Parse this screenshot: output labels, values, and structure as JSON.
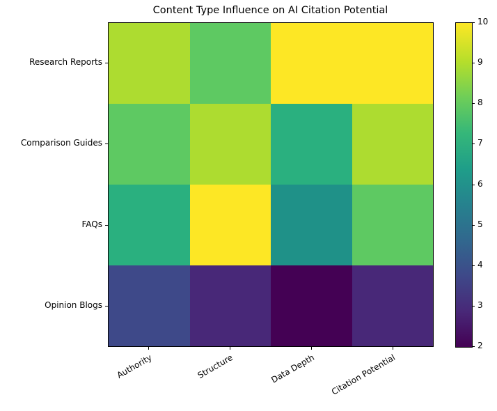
{
  "chart_data": {
    "type": "heatmap",
    "title": "Content Type Influence on AI Citation Potential",
    "xlabel": "",
    "ylabel": "",
    "x_categories": [
      "Authority",
      "Structure",
      "Data Depth",
      "Citation Potential"
    ],
    "y_categories": [
      "Research Reports",
      "Comparison Guides",
      "FAQs",
      "Opinion Blogs"
    ],
    "values": [
      [
        9,
        8,
        10,
        10
      ],
      [
        8,
        9,
        7,
        9
      ],
      [
        7,
        10,
        6,
        8
      ],
      [
        4,
        3,
        2,
        3
      ]
    ],
    "colormap": "viridis",
    "vmin": 2,
    "vmax": 10,
    "colorbar": {
      "ticks": [
        2,
        3,
        4,
        5,
        6,
        7,
        8,
        9,
        10
      ],
      "position": "right"
    },
    "xtick_rotation": 30,
    "grid": false
  },
  "colors": {
    "2": "#440154",
    "3": "#482878",
    "4": "#3e4989",
    "5": "#31688e",
    "6": "#1f9188",
    "7": "#2ab07f",
    "8": "#5ec962",
    "9": "#addc30",
    "10": "#fde725"
  }
}
